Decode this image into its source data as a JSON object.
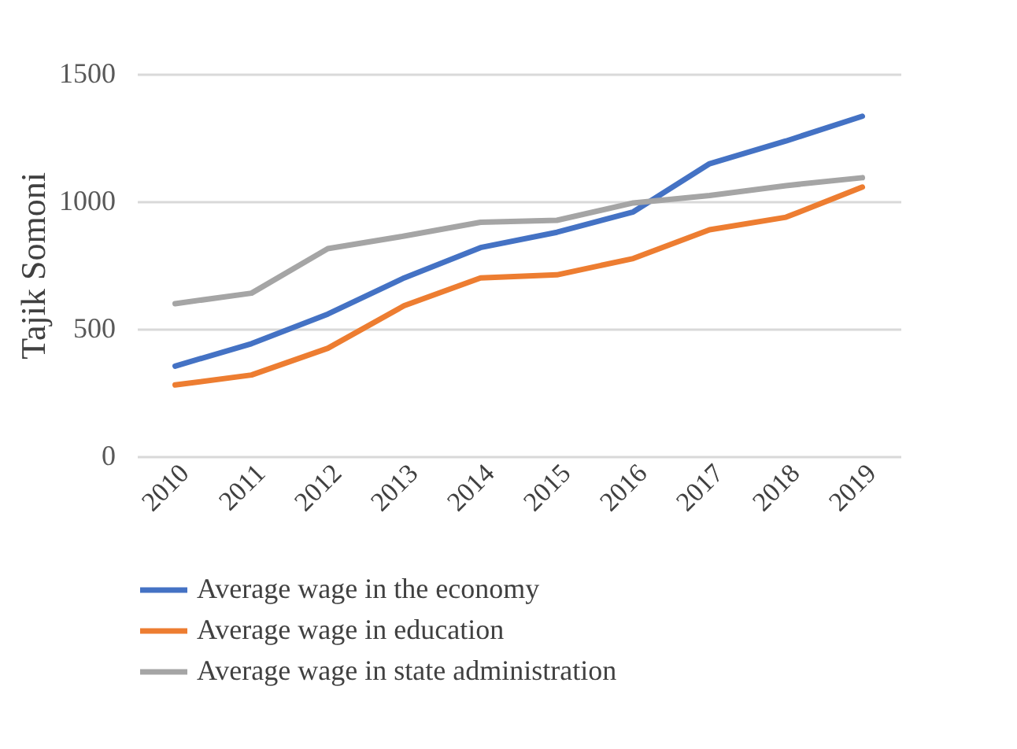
{
  "chart_data": {
    "type": "line",
    "ylabel": "Tajik Somoni",
    "categories": [
      "2010",
      "2011",
      "2012",
      "2013",
      "2014",
      "2015",
      "2016",
      "2017",
      "2018",
      "2019"
    ],
    "ylim": [
      0,
      1500
    ],
    "yticks": [
      0,
      500,
      1000,
      1500
    ],
    "grid": "y",
    "legend": "bottom",
    "marker": "none",
    "line_style": "solid",
    "series": [
      {
        "name": "Average wage in the economy",
        "color": "#4472c4",
        "values": [
          354,
          442,
          558,
          700,
          819,
          879,
          959,
          1148,
          1237,
          1334
        ]
      },
      {
        "name": "Average wage in education",
        "color": "#ed7d31",
        "values": [
          280,
          319,
          424,
          591,
          700,
          712,
          776,
          889,
          938,
          1056
        ]
      },
      {
        "name": "Average wage in state administration",
        "color": "#a5a5a5",
        "values": [
          599,
          640,
          815,
          864,
          918,
          926,
          994,
          1023,
          1062,
          1093
        ]
      }
    ]
  }
}
